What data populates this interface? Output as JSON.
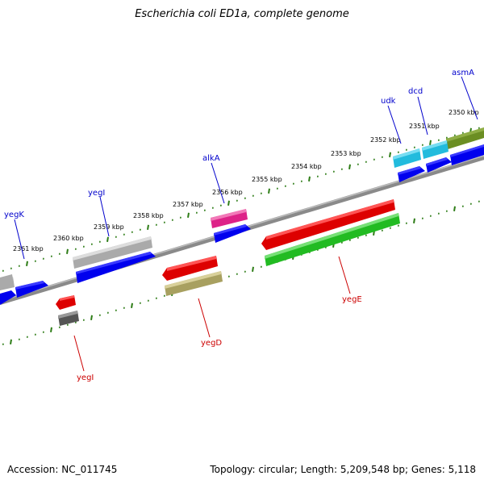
{
  "title": "Escherichia coli ED1a, complete genome",
  "footer": {
    "accession": "Accession: NC_011745",
    "topology": "Topology: circular; Length: 5,209,548 bp; Genes: 5,118"
  },
  "colors": {
    "backbone": "#777777",
    "ticks": "#2e7d17",
    "label_top": "#0000cc",
    "label_bottom": "#cc0000"
  },
  "tick_labels": [
    "2350 kbp",
    "2351 kbp",
    "2352 kbp",
    "2353 kbp",
    "2354 kbp",
    "2355 kbp",
    "2356 kbp",
    "2357 kbp",
    "2358 kbp",
    "2359 kbp",
    "2360 kbp",
    "2361 kbp"
  ],
  "genes_top": [
    {
      "name": "asmA",
      "color": "#6b8e23"
    },
    {
      "name": "dcd",
      "color": "#33ccee"
    },
    {
      "name": "udk",
      "color": "#33ccee"
    },
    {
      "name": "alkA",
      "color": "#ee3399"
    },
    {
      "name": "yegI",
      "color": "#bbbbbb"
    },
    {
      "name": "yegK",
      "color": "#bbbbbb"
    }
  ],
  "genes_bottom": [
    {
      "name": "yegE",
      "color": "#ee1111"
    },
    {
      "name": "yegD",
      "color": "#ee1111"
    },
    {
      "name": "yegI",
      "color": "#ee1111"
    }
  ]
}
